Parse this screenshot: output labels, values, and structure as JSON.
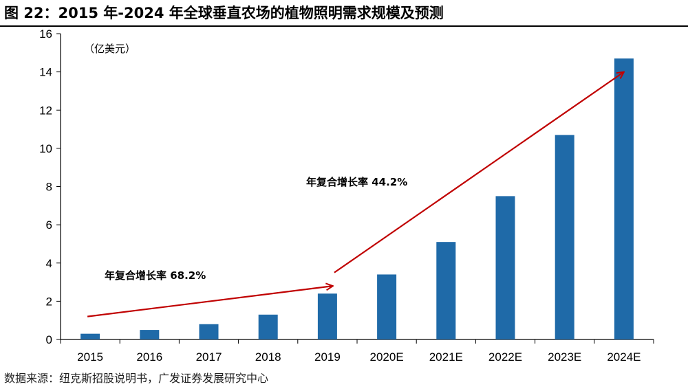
{
  "figure": {
    "title": "图 22：2015 年-2024 年全球垂直农场的植物照明需求规模及预测",
    "source": "数据来源：纽克斯招股说明书，广发证券发展研究中心"
  },
  "chart_data": {
    "type": "bar",
    "categories": [
      "2015",
      "2016",
      "2017",
      "2018",
      "2019",
      "2020E",
      "2021E",
      "2022E",
      "2023E",
      "2024E"
    ],
    "series": [
      {
        "values": [
          0.3,
          0.5,
          0.8,
          1.3,
          2.4,
          3.4,
          5.1,
          7.5,
          10.7,
          14.7
        ]
      }
    ],
    "unit_label": "（亿美元）",
    "ylim": [
      0,
      16
    ],
    "yticks": [
      0,
      2,
      4,
      6,
      8,
      10,
      12,
      14,
      16
    ],
    "bar_color": "#1f6aa8",
    "arrow_color": "#c00000",
    "grid": false,
    "legend": "none",
    "annotations": [
      {
        "text": "年复合增长率 68.2%",
        "from_category": "2015",
        "to_category": "2019",
        "from_value": 1.2,
        "to_value": 2.8
      },
      {
        "text": "年复合增长率 44.2%",
        "from_category": "2019",
        "to_category": "2024E",
        "from_value": 3.5,
        "to_value": 14.0
      }
    ]
  }
}
